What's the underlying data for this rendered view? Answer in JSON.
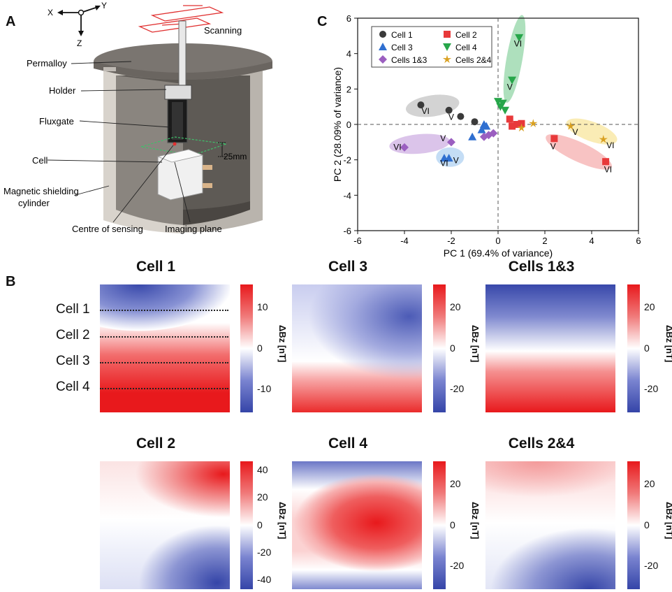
{
  "panels": {
    "a": "A",
    "b": "B",
    "c": "C"
  },
  "panel_a": {
    "axes": {
      "x": "X",
      "y": "Y",
      "z": "Z"
    },
    "labels": {
      "scanning": "Scanning",
      "permalloy": "Permalloy",
      "holder": "Holder",
      "fluxgate": "Fluxgate",
      "cell": "Cell",
      "shield_1": "Magnetic shielding",
      "shield_2": "cylinder",
      "distance": "25mm",
      "centre": "Centre of sensing",
      "imaging": "Imaging plane"
    }
  },
  "chart_data": {
    "type": "scatter",
    "xlabel": "PC 1 (69.4% of  variance)",
    "ylabel": "PC 2 (28.09% of  variance)",
    "xlim": [
      -6,
      6
    ],
    "ylim": [
      -6,
      6
    ],
    "xticks": [
      "-6",
      "-4",
      "-2",
      "0",
      "2",
      "4",
      "6"
    ],
    "yticks": [
      "6",
      "4",
      "2",
      "0",
      "-2",
      "-4",
      "-6"
    ],
    "legend": [
      {
        "name": "Cell 1",
        "color": "#3a3a3a",
        "marker": "circle"
      },
      {
        "name": "Cell 2",
        "color": "#e8393a",
        "marker": "square"
      },
      {
        "name": "Cell 3",
        "color": "#2f6fd0",
        "marker": "triangle-up"
      },
      {
        "name": "Cell 4",
        "color": "#27a64a",
        "marker": "triangle-down"
      },
      {
        "name": "Cells 1&3",
        "color": "#9b5fc0",
        "marker": "diamond"
      },
      {
        "name": "Cells 2&4",
        "color": "#d9a020",
        "marker": "star"
      }
    ],
    "series": [
      {
        "name": "Cell 1",
        "points": [
          [
            -3.3,
            1.1
          ],
          [
            -2.1,
            0.8
          ],
          [
            -1.6,
            0.45
          ],
          [
            -1.0,
            0.15
          ]
        ]
      },
      {
        "name": "Cell 2",
        "points": [
          [
            0.5,
            0.3
          ],
          [
            0.6,
            -0.1
          ],
          [
            0.8,
            0.0
          ],
          [
            1.0,
            0.05
          ],
          [
            2.4,
            -0.8
          ],
          [
            4.6,
            -2.1
          ]
        ]
      },
      {
        "name": "Cell 3",
        "points": [
          [
            -1.1,
            -0.7
          ],
          [
            -0.6,
            0.0
          ],
          [
            -0.5,
            -0.1
          ],
          [
            -0.7,
            -0.3
          ],
          [
            -2.1,
            -1.9
          ],
          [
            -2.3,
            -1.9
          ]
        ]
      },
      {
        "name": "Cell 4",
        "points": [
          [
            0.0,
            1.3
          ],
          [
            0.1,
            1.0
          ],
          [
            0.2,
            1.2
          ],
          [
            0.3,
            0.8
          ],
          [
            0.6,
            2.5
          ],
          [
            0.9,
            4.9
          ]
        ]
      },
      {
        "name": "Cells 1&3",
        "points": [
          [
            -0.4,
            -0.6
          ],
          [
            -0.2,
            -0.5
          ],
          [
            -0.6,
            -0.7
          ],
          [
            -2.0,
            -1.0
          ],
          [
            -4.0,
            -1.3
          ]
        ]
      },
      {
        "name": "Cells 2&4",
        "points": [
          [
            1.5,
            0.05
          ],
          [
            1.0,
            -0.2
          ],
          [
            3.1,
            -0.1
          ],
          [
            4.5,
            -0.85
          ]
        ]
      }
    ],
    "annotations": [
      {
        "text": "VI",
        "x": -3.1,
        "y": 0.6
      },
      {
        "text": "V",
        "x": -2.0,
        "y": 0.25
      },
      {
        "text": "VI",
        "x": -4.3,
        "y": -1.45
      },
      {
        "text": "V",
        "x": -2.35,
        "y": -0.95
      },
      {
        "text": "VI",
        "x": -2.3,
        "y": -2.35
      },
      {
        "text": "V",
        "x": -1.8,
        "y": -2.2
      },
      {
        "text": "VI",
        "x": 0.85,
        "y": 4.4
      },
      {
        "text": "V",
        "x": 0.5,
        "y": 1.95
      },
      {
        "text": "V",
        "x": 2.35,
        "y": -1.4
      },
      {
        "text": "VI",
        "x": 4.7,
        "y": -2.7
      },
      {
        "text": "V",
        "x": 3.3,
        "y": -0.6
      },
      {
        "text": "VI",
        "x": 4.8,
        "y": -1.35
      }
    ],
    "clusters": [
      {
        "cx": -2.8,
        "cy": 1.05,
        "rx": 1.15,
        "ry": 0.6,
        "rot": -8,
        "color": "#9e9e9e"
      },
      {
        "cx": -3.35,
        "cy": -1.1,
        "rx": 1.3,
        "ry": 0.55,
        "rot": -5,
        "color": "#b07cd0"
      },
      {
        "cx": -2.05,
        "cy": -1.85,
        "rx": 0.6,
        "ry": 0.55,
        "rot": 0,
        "color": "#7db3e8"
      },
      {
        "cx": 0.7,
        "cy": 3.7,
        "rx": 1.9,
        "ry": 0.45,
        "rot": -80,
        "color": "#4cbb6c"
      },
      {
        "cx": 3.45,
        "cy": -1.55,
        "rx": 1.55,
        "ry": 0.55,
        "rot": 25,
        "color": "#ef7b7b"
      },
      {
        "cx": 4.0,
        "cy": -0.4,
        "rx": 1.15,
        "ry": 0.55,
        "rot": 20,
        "color": "#f5d45a"
      }
    ]
  },
  "panel_b": {
    "row_labels": [
      "Cell 1",
      "Cell 2",
      "Cell 3",
      "Cell 4"
    ],
    "maps": [
      {
        "title": "Cell 1",
        "ticks": [
          "10",
          "0",
          "-10"
        ],
        "axis": "ΔBz [nT]"
      },
      {
        "title": "Cell 3",
        "ticks": [
          "20",
          "0",
          "-20"
        ],
        "axis": "ΔBz [nT]"
      },
      {
        "title": "Cells 1&3",
        "ticks": [
          "20",
          "0",
          "-20"
        ],
        "axis": "ΔBz [nT]"
      },
      {
        "title": "Cell 2",
        "ticks": [
          "40",
          "20",
          "0",
          "-20",
          "-40"
        ],
        "axis": "ΔBz [nT]"
      },
      {
        "title": "Cell 4",
        "ticks": [
          "20",
          "0",
          "-20"
        ],
        "axis": "ΔBz [nT]"
      },
      {
        "title": "Cells 2&4",
        "ticks": [
          "20",
          "0",
          "-20"
        ],
        "axis": "ΔBz [nT]"
      }
    ]
  }
}
